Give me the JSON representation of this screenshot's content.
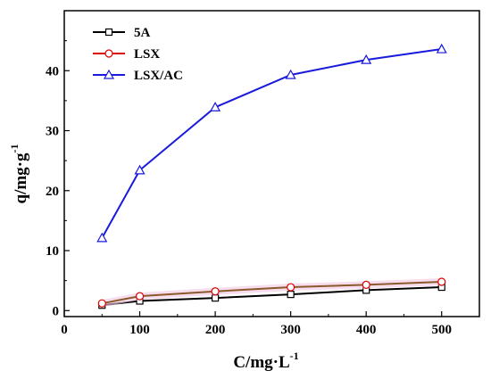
{
  "chart_data": {
    "type": "line",
    "x_axis": {
      "label": "C/mg·L",
      "superscript": "-1",
      "range": [
        0,
        550
      ],
      "ticks": [
        0,
        100,
        200,
        300,
        400,
        500
      ]
    },
    "y_axis": {
      "label": "q/mg·g",
      "superscript": "-1",
      "range": [
        -1,
        50
      ],
      "ticks": [
        0,
        10,
        20,
        30,
        40
      ]
    },
    "legend_position": "top-left",
    "grid": false,
    "series": [
      {
        "name": "5A",
        "color": "#000000",
        "marker": "square",
        "marker_edge": "#000000",
        "line_color": "#000000",
        "points": [
          [
            50,
            0.9
          ],
          [
            100,
            1.6
          ],
          [
            200,
            2.1
          ],
          [
            300,
            2.7
          ],
          [
            400,
            3.4
          ],
          [
            500,
            3.9
          ]
        ]
      },
      {
        "name": "LSX",
        "color": "#dd0000",
        "marker": "circle",
        "marker_edge": "#dd0000",
        "line_color": "#8b5a2b",
        "points": [
          [
            50,
            1.2
          ],
          [
            100,
            2.4
          ],
          [
            200,
            3.2
          ],
          [
            300,
            3.9
          ],
          [
            400,
            4.3
          ],
          [
            500,
            4.8
          ]
        ]
      },
      {
        "name": "LSX/AC",
        "color": "#1a1adb",
        "marker": "triangle",
        "marker_edge": "#1a1adb",
        "line_color": "#1a1adb",
        "points": [
          [
            50,
            12.1
          ],
          [
            100,
            23.4
          ],
          [
            200,
            33.9
          ],
          [
            300,
            39.3
          ],
          [
            400,
            41.8
          ],
          [
            500,
            43.6
          ]
        ]
      }
    ]
  }
}
